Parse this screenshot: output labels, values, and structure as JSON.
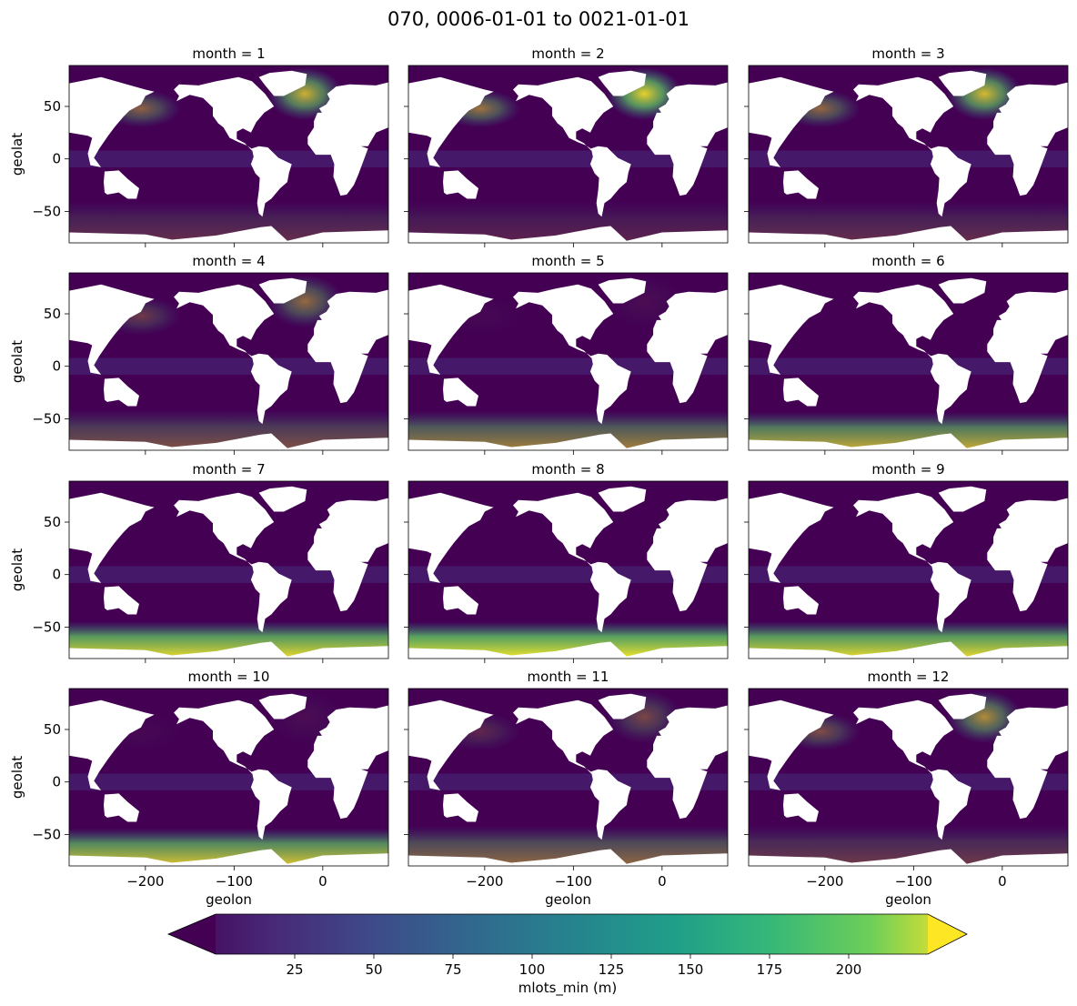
{
  "figure": {
    "title": "070, 0006-01-01 to 0021-01-01"
  },
  "chart_data": {
    "type": "heatmap",
    "layout": "4 rows x 3 columns of global maps (facet by month)",
    "variable": "mlots_min",
    "units": "m",
    "xlabel": "geolon",
    "ylabel": "geolat",
    "xlim": [
      -286,
      74
    ],
    "ylim": [
      -80,
      89
    ],
    "xticks": [
      -200,
      -100,
      0
    ],
    "xtick_labels": [
      "−200",
      "−100",
      "0"
    ],
    "yticks": [
      50,
      0,
      -50
    ],
    "ytick_labels": [
      "50",
      "0",
      "−50"
    ],
    "panels": [
      {
        "label": "month = 1",
        "month": 1,
        "nh_high": 0.75,
        "so_high": 0.2
      },
      {
        "label": "month = 2",
        "month": 2,
        "nh_high": 0.9,
        "so_high": 0.15
      },
      {
        "label": "month = 3",
        "month": 3,
        "nh_high": 0.8,
        "so_high": 0.2
      },
      {
        "label": "month = 4",
        "month": 4,
        "nh_high": 0.45,
        "so_high": 0.35
      },
      {
        "label": "month = 5",
        "month": 5,
        "nh_high": 0.05,
        "so_high": 0.55
      },
      {
        "label": "month = 6",
        "month": 6,
        "nh_high": 0.02,
        "so_high": 0.75
      },
      {
        "label": "month = 7",
        "month": 7,
        "nh_high": 0.0,
        "so_high": 0.95
      },
      {
        "label": "month = 8",
        "month": 8,
        "nh_high": 0.0,
        "so_high": 1.0
      },
      {
        "label": "month = 9",
        "month": 9,
        "nh_high": 0.0,
        "so_high": 0.95
      },
      {
        "label": "month = 10",
        "month": 10,
        "nh_high": 0.05,
        "so_high": 0.85
      },
      {
        "label": "month = 11",
        "month": 11,
        "nh_high": 0.3,
        "so_high": 0.45
      },
      {
        "label": "month = 12",
        "month": 12,
        "nh_high": 0.6,
        "so_high": 0.25
      }
    ],
    "colorbar": {
      "label": "mlots_min (m)",
      "colormap": "viridis",
      "extend": "both",
      "range": [
        0,
        225
      ],
      "ticks": [
        25,
        50,
        75,
        100,
        125,
        150,
        175,
        200
      ],
      "tick_labels": [
        "25",
        "50",
        "75",
        "100",
        "125",
        "150",
        "175",
        "200"
      ]
    },
    "colors": {
      "land": "#ffffff",
      "low": "#440154",
      "high": "#fde725"
    }
  }
}
